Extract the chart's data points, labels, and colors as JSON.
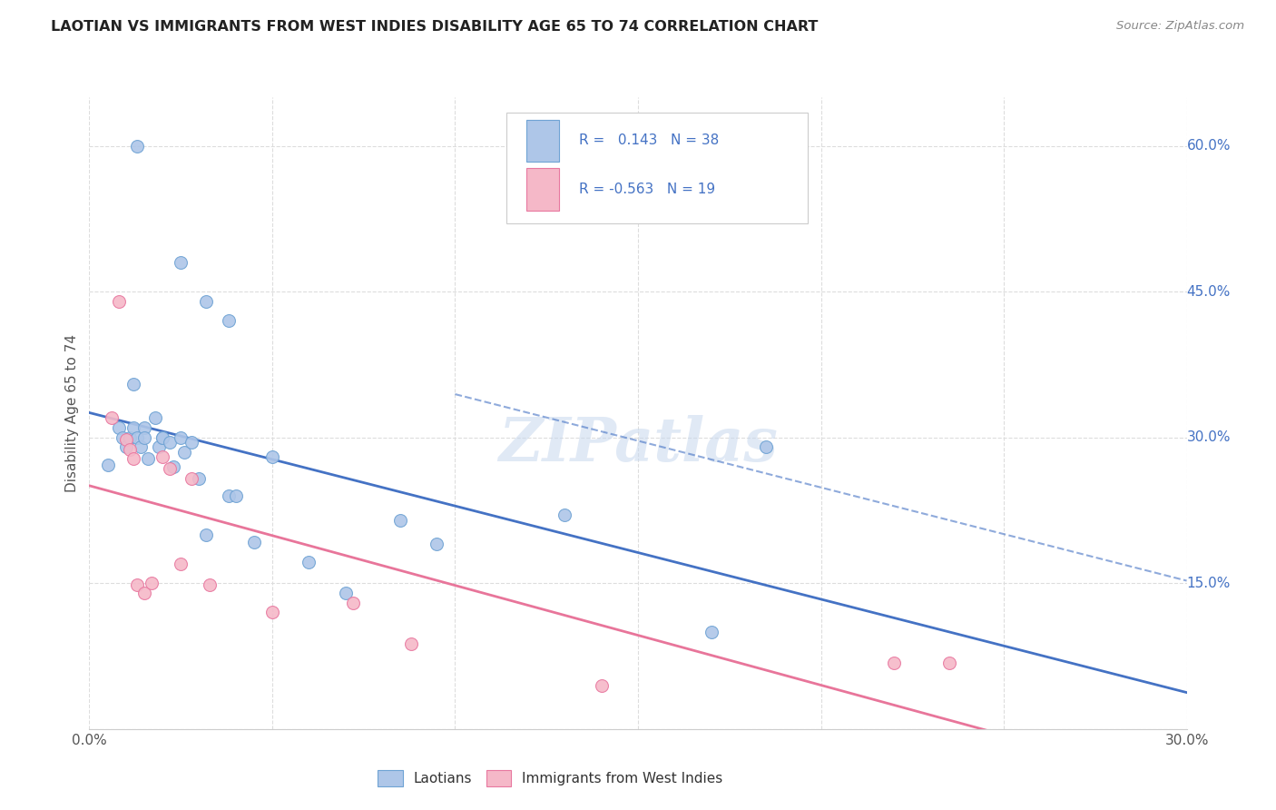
{
  "title": "LAOTIAN VS IMMIGRANTS FROM WEST INDIES DISABILITY AGE 65 TO 74 CORRELATION CHART",
  "source": "Source: ZipAtlas.com",
  "ylabel": "Disability Age 65 to 74",
  "xlim": [
    0.0,
    0.3
  ],
  "ylim": [
    0.0,
    0.65
  ],
  "xtick_vals": [
    0.0,
    0.05,
    0.1,
    0.15,
    0.2,
    0.25,
    0.3
  ],
  "xtick_labels": [
    "0.0%",
    "",
    "",
    "",
    "",
    "",
    "30.0%"
  ],
  "ytick_vals": [
    0.0,
    0.15,
    0.3,
    0.45,
    0.6
  ],
  "ytick_labels": [
    "",
    "15.0%",
    "30.0%",
    "45.0%",
    "60.0%"
  ],
  "watermark_text": "ZIPatlas",
  "laotian_color": "#aec6e8",
  "laotian_edge": "#6fa3d4",
  "west_indies_color": "#f5b8c8",
  "west_indies_edge": "#e878a0",
  "laotian_line_color": "#4472c4",
  "west_indies_line_color": "#e8759a",
  "laotian_R": 0.143,
  "laotian_N": 38,
  "west_indies_R": -0.563,
  "west_indies_N": 19,
  "laotian_x": [
    0.013,
    0.025,
    0.032,
    0.038,
    0.005,
    0.008,
    0.009,
    0.01,
    0.011,
    0.012,
    0.012,
    0.013,
    0.014,
    0.015,
    0.015,
    0.016,
    0.018,
    0.019,
    0.02,
    0.02,
    0.022,
    0.023,
    0.025,
    0.026,
    0.028,
    0.03,
    0.032,
    0.038,
    0.04,
    0.045,
    0.05,
    0.06,
    0.07,
    0.085,
    0.095,
    0.13,
    0.17,
    0.185
  ],
  "laotian_y": [
    0.6,
    0.48,
    0.44,
    0.42,
    0.272,
    0.31,
    0.3,
    0.29,
    0.3,
    0.355,
    0.31,
    0.3,
    0.29,
    0.31,
    0.3,
    0.278,
    0.32,
    0.29,
    0.3,
    0.3,
    0.295,
    0.27,
    0.3,
    0.285,
    0.295,
    0.258,
    0.2,
    0.24,
    0.24,
    0.192,
    0.28,
    0.172,
    0.14,
    0.215,
    0.19,
    0.22,
    0.1,
    0.29
  ],
  "west_indies_x": [
    0.006,
    0.008,
    0.01,
    0.011,
    0.012,
    0.013,
    0.015,
    0.017,
    0.02,
    0.022,
    0.025,
    0.028,
    0.033,
    0.05,
    0.072,
    0.088,
    0.14,
    0.22,
    0.235
  ],
  "west_indies_y": [
    0.32,
    0.44,
    0.298,
    0.288,
    0.278,
    0.148,
    0.14,
    0.15,
    0.28,
    0.268,
    0.17,
    0.258,
    0.148,
    0.12,
    0.13,
    0.088,
    0.045,
    0.068,
    0.068
  ]
}
